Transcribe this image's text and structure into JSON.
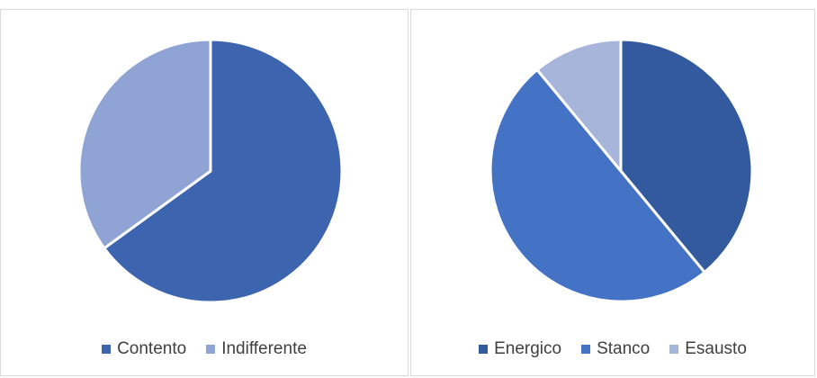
{
  "chart_data": [
    {
      "type": "pie",
      "categories": [
        "Contento",
        "Indifferente"
      ],
      "values": [
        65,
        35
      ],
      "colors": [
        "#3D64AE",
        "#8FA4D4"
      ],
      "legend_position": "bottom"
    },
    {
      "type": "pie",
      "categories": [
        "Energico",
        "Stanco",
        "Esausto"
      ],
      "values": [
        39,
        50,
        11
      ],
      "colors": [
        "#335A9E",
        "#4472C4",
        "#A7B5DA"
      ],
      "legend_position": "bottom"
    }
  ]
}
